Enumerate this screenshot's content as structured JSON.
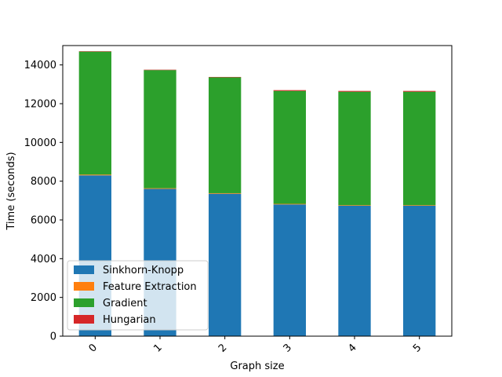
{
  "chart_data": {
    "type": "bar",
    "stacked": true,
    "title": "",
    "xlabel": "Graph size",
    "ylabel": "Time (seconds)",
    "categories": [
      "0",
      "1",
      "2",
      "3",
      "4",
      "5"
    ],
    "ylim": [
      0,
      15000
    ],
    "yticks": [
      "0",
      "2000",
      "4000",
      "6000",
      "8000",
      "10000",
      "12000",
      "14000"
    ],
    "grid": false,
    "legend_position": "lower-left",
    "series": [
      {
        "name": "Sinkhorn-Knopp",
        "color": "#1f77b4",
        "values": [
          8300,
          7600,
          7350,
          6800,
          6730,
          6730
        ]
      },
      {
        "name": "Feature Extraction",
        "color": "#ff7f0e",
        "values": [
          40,
          35,
          30,
          30,
          30,
          30
        ]
      },
      {
        "name": "Gradient",
        "color": "#2ca02c",
        "values": [
          6350,
          6100,
          5980,
          5830,
          5860,
          5860
        ]
      },
      {
        "name": "Hungarian",
        "color": "#d62728",
        "values": [
          20,
          20,
          20,
          40,
          40,
          40
        ]
      }
    ]
  }
}
